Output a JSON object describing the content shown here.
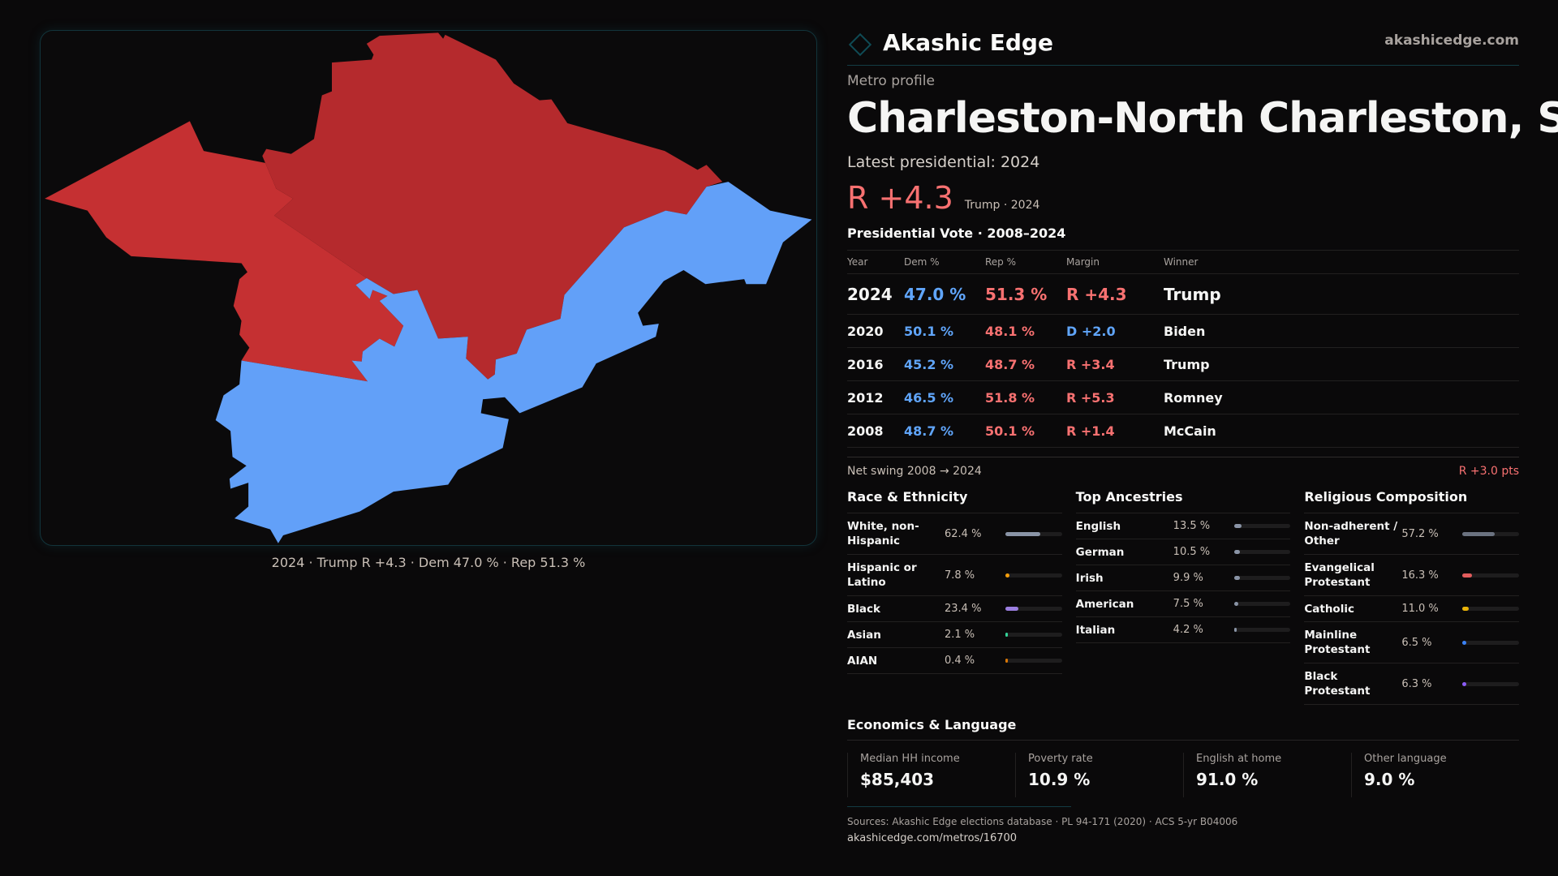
{
  "brand": {
    "name": "Akashic Edge",
    "domain": "akashicedge.com"
  },
  "header": {
    "kicker": "Metro profile",
    "title": "Charleston-North Charleston, SC",
    "latest": "Latest presidential: 2024",
    "margin": "R +4.3",
    "margin_sub": "Trump · 2024"
  },
  "map": {
    "caption": "2024 · Trump R +4.3 · Dem 47.0 % · Rep 51.3 %",
    "colors": {
      "rep": "#c53032",
      "rep_dark": "#b52a2d",
      "dem": "#62a0f8"
    }
  },
  "vote": {
    "title": "Presidential Vote · 2008–2024",
    "columns": [
      "Year",
      "Dem %",
      "Rep %",
      "Margin",
      "Winner"
    ],
    "rows": [
      {
        "year": "2024",
        "dem": "47.0 %",
        "rep": "51.3 %",
        "margin": "R +4.3",
        "party": "rep",
        "winner": "Trump"
      },
      {
        "year": "2020",
        "dem": "50.1 %",
        "rep": "48.1 %",
        "margin": "D +2.0",
        "party": "dem",
        "winner": "Biden"
      },
      {
        "year": "2016",
        "dem": "45.2 %",
        "rep": "48.7 %",
        "margin": "R +3.4",
        "party": "rep",
        "winner": "Trump"
      },
      {
        "year": "2012",
        "dem": "46.5 %",
        "rep": "51.8 %",
        "margin": "R +5.3",
        "party": "rep",
        "winner": "Romney"
      },
      {
        "year": "2008",
        "dem": "48.7 %",
        "rep": "50.1 %",
        "margin": "R +1.4",
        "party": "rep",
        "winner": "McCain"
      }
    ],
    "swing_label": "Net swing 2008 → 2024",
    "swing_value": "R +3.0 pts"
  },
  "sections": [
    {
      "title": "Race & Ethnicity",
      "key": "race",
      "items": [
        {
          "label": "White, non-Hispanic",
          "pct": "62.4 %",
          "value": 62.4,
          "color": "#8a94a6"
        },
        {
          "label": "Hispanic or Latino",
          "pct": "7.8 %",
          "value": 7.8,
          "color": "#f59e0b"
        },
        {
          "label": "Black",
          "pct": "23.4 %",
          "value": 23.4,
          "color": "#9b7ee0"
        },
        {
          "label": "Asian",
          "pct": "2.1 %",
          "value": 2.1,
          "color": "#34d399"
        },
        {
          "label": "AIAN",
          "pct": "0.4 %",
          "value": 0.4,
          "color": "#d97706"
        }
      ]
    },
    {
      "title": "Top Ancestries",
      "key": "anc",
      "items": [
        {
          "label": "English",
          "pct": "13.5 %",
          "value": 13.5,
          "color": "#8a94a6"
        },
        {
          "label": "German",
          "pct": "10.5 %",
          "value": 10.5,
          "color": "#8a94a6"
        },
        {
          "label": "Irish",
          "pct": "9.9 %",
          "value": 9.9,
          "color": "#8a94a6"
        },
        {
          "label": "American",
          "pct": "7.5 %",
          "value": 7.5,
          "color": "#8a94a6"
        },
        {
          "label": "Italian",
          "pct": "4.2 %",
          "value": 4.2,
          "color": "#8a94a6"
        }
      ]
    },
    {
      "title": "Religious Composition",
      "key": "rel",
      "items": [
        {
          "label": "Non-adherent / Other",
          "pct": "57.2 %",
          "value": 57.2,
          "color": "#6b7280"
        },
        {
          "label": "Evangelical Protestant",
          "pct": "16.3 %",
          "value": 16.3,
          "color": "#e25c5c"
        },
        {
          "label": "Catholic",
          "pct": "11.0 %",
          "value": 11.0,
          "color": "#eab308"
        },
        {
          "label": "Mainline Protestant",
          "pct": "6.5 %",
          "value": 6.5,
          "color": "#3b82f6"
        },
        {
          "label": "Black Protestant",
          "pct": "6.3 %",
          "value": 6.3,
          "color": "#8b5cf6"
        }
      ]
    }
  ],
  "econ": {
    "title": "Economics & Language",
    "stats": [
      {
        "label": "Median HH income",
        "value": "$85,403"
      },
      {
        "label": "Poverty rate",
        "value": "10.9 %"
      },
      {
        "label": "English at home",
        "value": "91.0 %"
      },
      {
        "label": "Other language",
        "value": "9.0 %"
      }
    ]
  },
  "footer": {
    "sources": "Sources: Akashic Edge elections database · PL 94-171 (2020) · ACS 5-yr B04006",
    "url": "akashicedge.com/metros/16700"
  }
}
